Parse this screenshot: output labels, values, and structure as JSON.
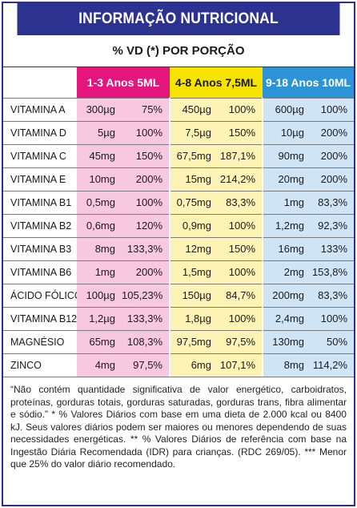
{
  "title": "INFORMAÇÃO NUTRICIONAL",
  "subtitle": "% VD (*) POR PORÇÃO",
  "groups": [
    {
      "label": "1-3 Anos  5ML"
    },
    {
      "label": "4-8 Anos  7,5ML"
    },
    {
      "label": "9-18 Anos  10ML"
    }
  ],
  "rows": [
    {
      "name": "VITAMINA A",
      "v": [
        "300µg",
        "75%",
        "450µg",
        "100%",
        "600µg",
        "100%"
      ]
    },
    {
      "name": "VITAMINA D",
      "v": [
        "5µg",
        "100%",
        "7,5µg",
        "150%",
        "10µg",
        "200%"
      ]
    },
    {
      "name": "VITAMINA C",
      "v": [
        "45mg",
        "150%",
        "67,5mg",
        "187,1%",
        "90mg",
        "200%"
      ]
    },
    {
      "name": "VITAMINA E",
      "v": [
        "10mg",
        "200%",
        "15mg",
        "214,2%",
        "20mg",
        "200%"
      ]
    },
    {
      "name": "VITAMINA B1",
      "v": [
        "0,5mg",
        "100%",
        "0,75mg",
        "83,3%",
        "1mg",
        "83,3%"
      ]
    },
    {
      "name": "VITAMINA B2",
      "v": [
        "0,6mg",
        "120%",
        "0,9mg",
        "100%",
        "1,2mg",
        "92,3%"
      ]
    },
    {
      "name": "VITAMINA B3",
      "v": [
        "8mg",
        "133,3%",
        "12mg",
        "150%",
        "16mg",
        "133%"
      ]
    },
    {
      "name": "VITAMINA B6",
      "v": [
        "1mg",
        "200%",
        "1,5mg",
        "100%",
        "2mg",
        "153,8%"
      ]
    },
    {
      "name": "ÁCIDO FÓLICO",
      "v": [
        "100µg",
        "105,23%",
        "150µg",
        "84,7%",
        "200mg",
        "83,3%"
      ]
    },
    {
      "name": "VITAMINA B12",
      "v": [
        "1,2µg",
        "133,3%",
        "1,8µg",
        "100%",
        "2,4mg",
        "100%"
      ]
    },
    {
      "name": "MAGNÉSIO",
      "v": [
        "65mg",
        "108,3%",
        "97,5mg",
        "97,5%",
        "130mg",
        "50%"
      ]
    },
    {
      "name": "ZINCO",
      "v": [
        "4mg",
        "97,5%",
        "6mg",
        "107,1%",
        "8mg",
        "114,2%"
      ]
    }
  ],
  "footnote": {
    "line1": "“Não contém quantidade significativa de valor energético, carboidratos, proteínas, gorduras totais, gorduras saturadas, gorduras trans, fibra alimentar e sódio.”",
    "line2": "* % Valores Diários com base em uma dieta de 2.000 kcal ou 8400 kJ. Seus valores diários podem ser maiores ou menores dependendo de suas necessidades energéticas. ** % Valores Diários de referência com base na Ingestão Diária Recomendada (IDR) para crianças. (RDC 269/05). *** Menor que 25% do valor diário recomendado."
  },
  "colors": {
    "header_bar": "#2b3290",
    "group1_head": "#e6157e",
    "group1_cell": "#f7c8e0",
    "group2_head": "#f6e300",
    "group2_cell": "#fcf3b4",
    "group3_head": "#2c93d6",
    "group3_cell": "#cfe5f6"
  }
}
